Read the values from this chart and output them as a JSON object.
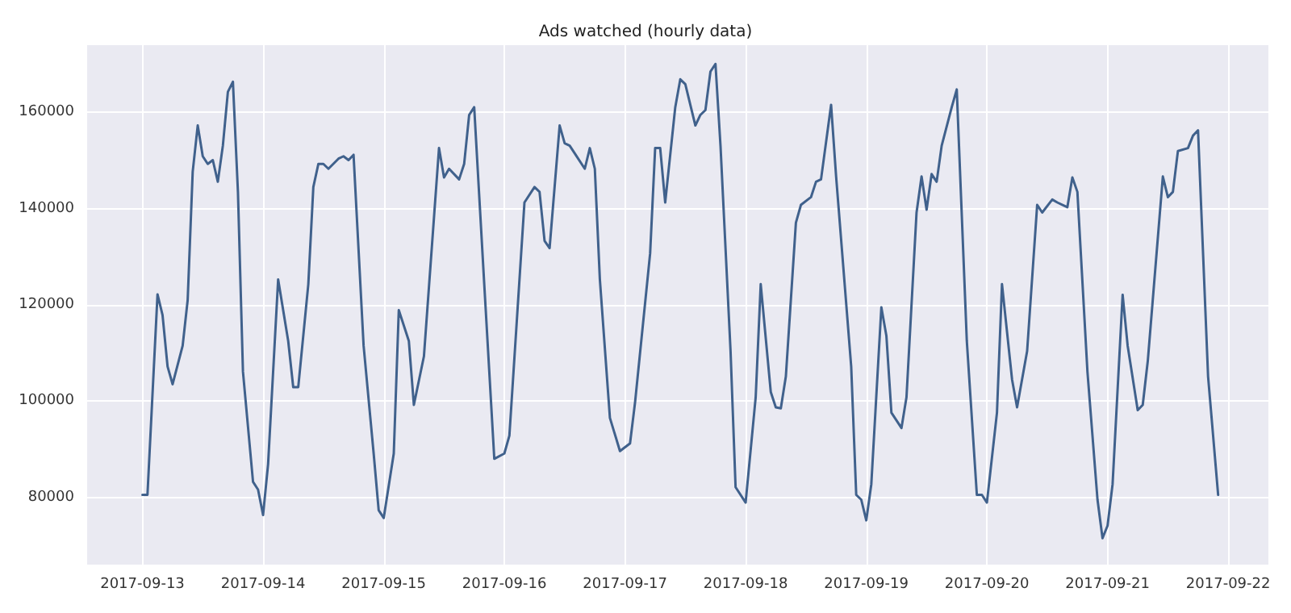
{
  "chart_data": {
    "type": "line",
    "title": "Ads watched (hourly data)",
    "x": [
      "2017-09-13T00:00",
      "2017-09-13T01:00",
      "2017-09-13T03:00",
      "2017-09-13T04:00",
      "2017-09-13T05:00",
      "2017-09-13T06:00",
      "2017-09-13T08:00",
      "2017-09-13T09:00",
      "2017-09-13T10:00",
      "2017-09-13T11:00",
      "2017-09-13T12:00",
      "2017-09-13T13:00",
      "2017-09-13T14:00",
      "2017-09-13T15:00",
      "2017-09-13T16:00",
      "2017-09-13T17:00",
      "2017-09-13T18:00",
      "2017-09-13T19:00",
      "2017-09-13T20:00",
      "2017-09-13T22:00",
      "2017-09-13T23:00",
      "2017-09-14T00:00",
      "2017-09-14T01:00",
      "2017-09-14T03:00",
      "2017-09-14T05:00",
      "2017-09-14T06:00",
      "2017-09-14T07:00",
      "2017-09-14T09:00",
      "2017-09-14T10:00",
      "2017-09-14T11:00",
      "2017-09-14T12:00",
      "2017-09-14T13:00",
      "2017-09-14T15:00",
      "2017-09-14T16:00",
      "2017-09-14T17:00",
      "2017-09-14T18:00",
      "2017-09-14T20:00",
      "2017-09-14T22:00",
      "2017-09-14T23:00",
      "2017-09-15T00:00",
      "2017-09-15T02:00",
      "2017-09-15T03:00",
      "2017-09-15T05:00",
      "2017-09-15T06:00",
      "2017-09-15T08:00",
      "2017-09-15T11:00",
      "2017-09-15T12:00",
      "2017-09-15T13:00",
      "2017-09-15T15:00",
      "2017-09-15T16:00",
      "2017-09-15T17:00",
      "2017-09-15T18:00",
      "2017-09-15T20:00",
      "2017-09-15T22:00",
      "2017-09-16T00:00",
      "2017-09-16T01:00",
      "2017-09-16T04:00",
      "2017-09-16T06:00",
      "2017-09-16T07:00",
      "2017-09-16T08:00",
      "2017-09-16T09:00",
      "2017-09-16T11:00",
      "2017-09-16T12:00",
      "2017-09-16T13:00",
      "2017-09-16T14:00",
      "2017-09-16T16:00",
      "2017-09-16T17:00",
      "2017-09-16T18:00",
      "2017-09-16T19:00",
      "2017-09-16T21:00",
      "2017-09-16T23:00",
      "2017-09-17T01:00",
      "2017-09-17T02:00",
      "2017-09-17T05:00",
      "2017-09-17T06:00",
      "2017-09-17T07:00",
      "2017-09-17T08:00",
      "2017-09-17T10:00",
      "2017-09-17T11:00",
      "2017-09-17T12:00",
      "2017-09-17T14:00",
      "2017-09-17T15:00",
      "2017-09-17T16:00",
      "2017-09-17T17:00",
      "2017-09-17T18:00",
      "2017-09-17T19:00",
      "2017-09-17T21:00",
      "2017-09-17T22:00",
      "2017-09-18T00:00",
      "2017-09-18T02:00",
      "2017-09-18T03:00",
      "2017-09-18T05:00",
      "2017-09-18T06:00",
      "2017-09-18T07:00",
      "2017-09-18T08:00",
      "2017-09-18T10:00",
      "2017-09-18T11:00",
      "2017-09-18T13:00",
      "2017-09-18T14:00",
      "2017-09-18T15:00",
      "2017-09-18T17:00",
      "2017-09-18T18:00",
      "2017-09-18T21:00",
      "2017-09-18T22:00",
      "2017-09-18T23:00",
      "2017-09-19T00:00",
      "2017-09-19T01:00",
      "2017-09-19T03:00",
      "2017-09-19T04:00",
      "2017-09-19T05:00",
      "2017-09-19T07:00",
      "2017-09-19T08:00",
      "2017-09-19T10:00",
      "2017-09-19T11:00",
      "2017-09-19T12:00",
      "2017-09-19T13:00",
      "2017-09-19T14:00",
      "2017-09-19T15:00",
      "2017-09-19T17:00",
      "2017-09-19T18:00",
      "2017-09-19T20:00",
      "2017-09-19T22:00",
      "2017-09-19T23:00",
      "2017-09-20T00:00",
      "2017-09-20T02:00",
      "2017-09-20T03:00",
      "2017-09-20T05:00",
      "2017-09-20T06:00",
      "2017-09-20T08:00",
      "2017-09-20T10:00",
      "2017-09-20T11:00",
      "2017-09-20T13:00",
      "2017-09-20T14:00",
      "2017-09-20T16:00",
      "2017-09-20T17:00",
      "2017-09-20T18:00",
      "2017-09-20T20:00",
      "2017-09-20T22:00",
      "2017-09-20T23:00",
      "2017-09-21T00:00",
      "2017-09-21T01:00",
      "2017-09-21T03:00",
      "2017-09-21T04:00",
      "2017-09-21T06:00",
      "2017-09-21T07:00",
      "2017-09-21T08:00",
      "2017-09-21T11:00",
      "2017-09-21T12:00",
      "2017-09-21T13:00",
      "2017-09-21T14:00",
      "2017-09-21T16:00",
      "2017-09-21T17:00",
      "2017-09-21T18:00",
      "2017-09-21T20:00",
      "2017-09-21T22:00"
    ],
    "series": [
      {
        "color": "#40618c",
        "values": [
          80500,
          80500,
          122200,
          117900,
          107200,
          103500,
          111500,
          121000,
          147700,
          157300,
          150900,
          149300,
          150100,
          145600,
          153100,
          164300,
          166400,
          143500,
          106100,
          83200,
          81600,
          76300,
          86900,
          125300,
          112500,
          102900,
          102900,
          124300,
          144500,
          149300,
          149300,
          148300,
          150400,
          150900,
          150100,
          151200,
          111500,
          89100,
          77300,
          75700,
          89100,
          118900,
          112500,
          99200,
          109300,
          152600,
          146500,
          148300,
          146100,
          149300,
          159500,
          161100,
          124300,
          88000,
          89100,
          92800,
          141300,
          144500,
          143500,
          133300,
          131800,
          157300,
          153600,
          153100,
          151500,
          148300,
          152600,
          148300,
          125300,
          96500,
          89600,
          91200,
          99700,
          130700,
          152600,
          152600,
          141300,
          161100,
          166900,
          165900,
          157300,
          159500,
          160500,
          168500,
          170100,
          153100,
          110400,
          82100,
          78900,
          100800,
          124300,
          101900,
          98700,
          98500,
          105100,
          137100,
          140800,
          142400,
          145600,
          146100,
          161600,
          146700,
          107200,
          80500,
          79500,
          75200,
          82700,
          119500,
          113600,
          97600,
          94400,
          100800,
          139200,
          146700,
          139800,
          147200,
          145600,
          153100,
          161100,
          164800,
          112500,
          80500,
          80500,
          78900,
          97600,
          124300,
          104500,
          98700,
          110400,
          140800,
          139200,
          141900,
          141300,
          140300,
          146500,
          143500,
          106100,
          79500,
          71500,
          74100,
          82700,
          122100,
          111500,
          98100,
          99200,
          108300,
          146700,
          142400,
          143500,
          152000,
          152600,
          155200,
          156300,
          105100,
          80500
        ]
      }
    ],
    "xlim": [
      "2017-09-12T13:00",
      "2017-09-22T08:00"
    ],
    "xticks": [
      "2017-09-13",
      "2017-09-14",
      "2017-09-15",
      "2017-09-16",
      "2017-09-17",
      "2017-09-18",
      "2017-09-19",
      "2017-09-20",
      "2017-09-21",
      "2017-09-22"
    ],
    "ylim": [
      66000,
      174000
    ],
    "yticks": [
      80000,
      100000,
      120000,
      140000,
      160000
    ],
    "grid": true,
    "marker": "none",
    "line_style": "solid"
  }
}
